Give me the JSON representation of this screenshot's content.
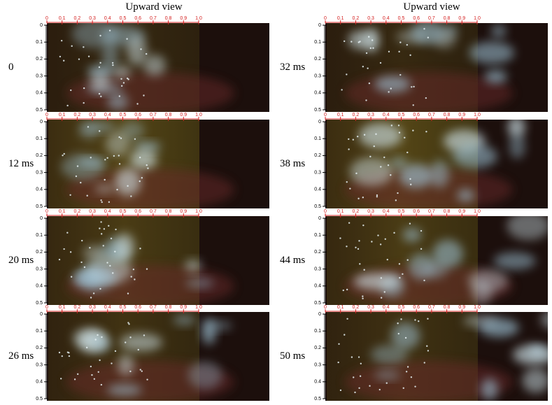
{
  "header": {
    "left_title": "Upward view",
    "right_title": "Upward view"
  },
  "ruler": {
    "x_ticks": [
      "0",
      "0.1",
      "0.2",
      "0.3",
      "0.4",
      "0.5",
      "0.6",
      "0.7",
      "0.8",
      "0.9",
      "1.0"
    ],
    "y_ticks": [
      "0",
      "0.1",
      "0.2",
      "0.3",
      "0.4",
      "0.5"
    ]
  },
  "panels": [
    {
      "label": "0"
    },
    {
      "label": "12 ms"
    },
    {
      "label": "20 ms"
    },
    {
      "label": "26 ms"
    },
    {
      "label": "32 ms"
    },
    {
      "label": "38 ms"
    },
    {
      "label": "44 ms"
    },
    {
      "label": "50 ms"
    }
  ]
}
